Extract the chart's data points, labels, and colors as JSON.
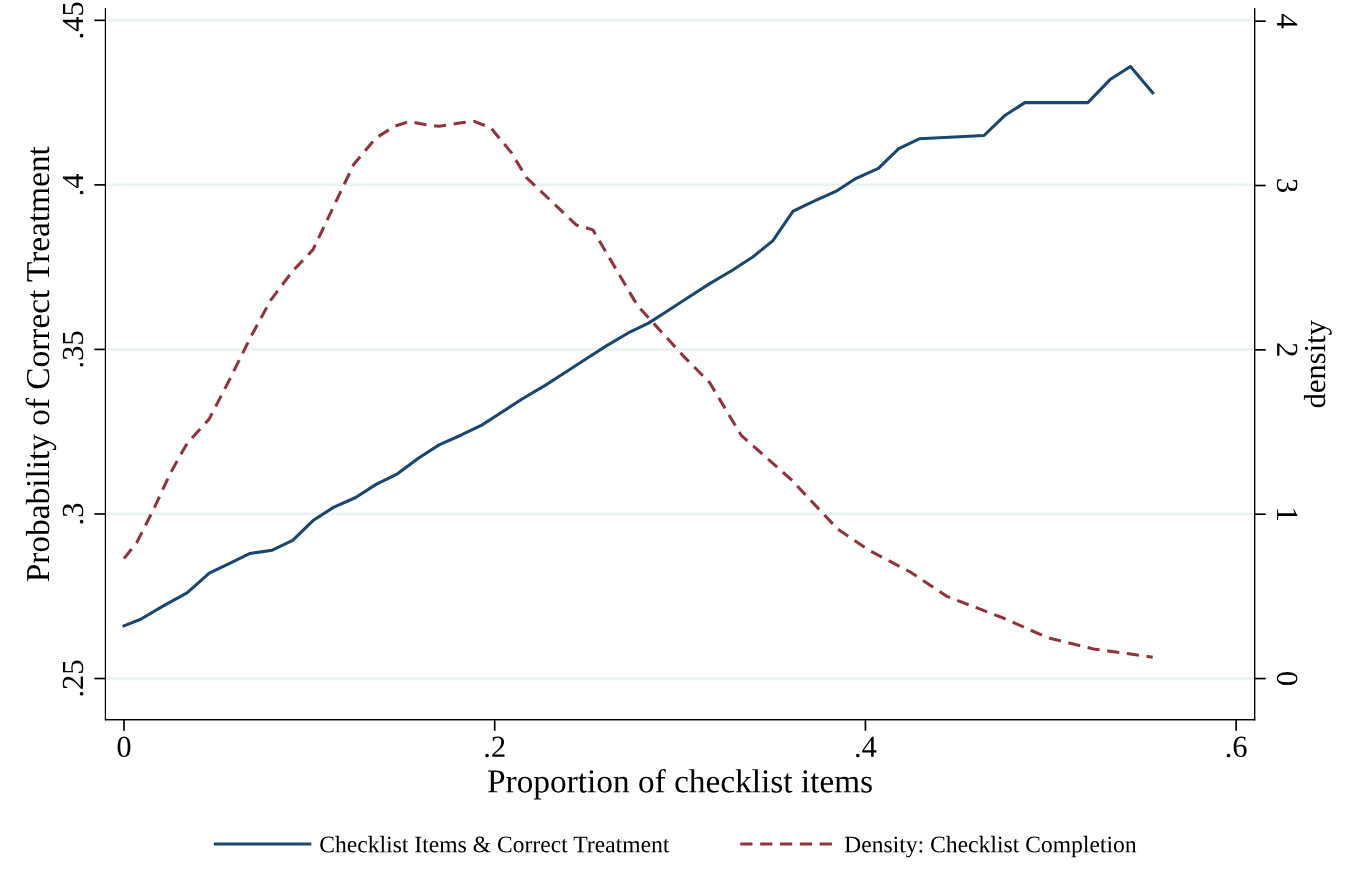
{
  "chart_data": {
    "type": "line",
    "xlabel": "Proportion of checklist items",
    "ylabel": "Probability of Correct Treatment",
    "y2label": "density",
    "xlim": [
      -0.01,
      0.61
    ],
    "xticks": [
      {
        "value": 0,
        "label": "0"
      },
      {
        "value": 0.2,
        "label": ".2"
      },
      {
        "value": 0.4,
        "label": ".4"
      },
      {
        "value": 0.6,
        "label": ".6"
      }
    ],
    "ylim": [
      0.2375,
      0.4535
    ],
    "yticks": [
      {
        "value": 0.25,
        "label": ".25"
      },
      {
        "value": 0.3,
        "label": ".3"
      },
      {
        "value": 0.35,
        "label": ".35"
      },
      {
        "value": 0.4,
        "label": ".4"
      },
      {
        "value": 0.45,
        "label": ".45"
      }
    ],
    "y2lim": [
      -0.25,
      4.075
    ],
    "y2ticks": [
      0,
      1,
      2,
      3,
      4
    ],
    "grid": "y",
    "legend": "bottom",
    "series": [
      {
        "name": "Checklist Items & Correct Treatment",
        "color": "#1a476f",
        "line_style": "solid",
        "x": [
          0,
          0.009,
          0.021,
          0.034,
          0.046,
          0.057,
          0.068,
          0.08,
          0.091,
          0.102,
          0.113,
          0.125,
          0.136,
          0.147,
          0.159,
          0.17,
          0.182,
          0.193,
          0.204,
          0.215,
          0.227,
          0.238,
          0.249,
          0.26,
          0.272,
          0.283,
          0.294,
          0.305,
          0.316,
          0.328,
          0.339,
          0.35,
          0.361,
          0.372,
          0.384,
          0.395,
          0.407,
          0.418,
          0.429,
          0.464,
          0.475,
          0.486,
          0.52,
          0.532,
          0.543,
          0.555
        ],
        "values": [
          0.266,
          0.268,
          0.272,
          0.276,
          0.282,
          0.285,
          0.288,
          0.289,
          0.292,
          0.298,
          0.302,
          0.305,
          0.309,
          0.312,
          0.317,
          0.321,
          0.324,
          0.327,
          0.331,
          0.335,
          0.339,
          0.343,
          0.347,
          0.351,
          0.355,
          0.358,
          0.362,
          0.366,
          0.37,
          0.374,
          0.378,
          0.383,
          0.392,
          0.395,
          0.398,
          0.402,
          0.405,
          0.411,
          0.414,
          0.415,
          0.421,
          0.425,
          0.425,
          0.432,
          0.436,
          0.428
        ]
      },
      {
        "name": "Density: Checklist Completion",
        "color": "#90353b",
        "line_style": "dashed",
        "axis": "y2",
        "x": [
          0,
          0.007,
          0.016,
          0.025,
          0.034,
          0.046,
          0.057,
          0.068,
          0.079,
          0.091,
          0.102,
          0.113,
          0.124,
          0.136,
          0.146,
          0.154,
          0.163,
          0.17,
          0.181,
          0.189,
          0.198,
          0.209,
          0.217,
          0.231,
          0.244,
          0.253,
          0.277,
          0.302,
          0.316,
          0.333,
          0.36,
          0.385,
          0.402,
          0.424,
          0.444,
          0.474,
          0.498,
          0.523,
          0.555
        ],
        "values": [
          0.73,
          0.83,
          1.03,
          1.25,
          1.43,
          1.58,
          1.82,
          2.07,
          2.3,
          2.48,
          2.61,
          2.87,
          3.13,
          3.29,
          3.36,
          3.39,
          3.37,
          3.36,
          3.38,
          3.39,
          3.35,
          3.2,
          3.05,
          2.9,
          2.76,
          2.73,
          2.27,
          1.96,
          1.8,
          1.48,
          1.21,
          0.91,
          0.78,
          0.65,
          0.5,
          0.37,
          0.25,
          0.18,
          0.13
        ]
      }
    ]
  }
}
